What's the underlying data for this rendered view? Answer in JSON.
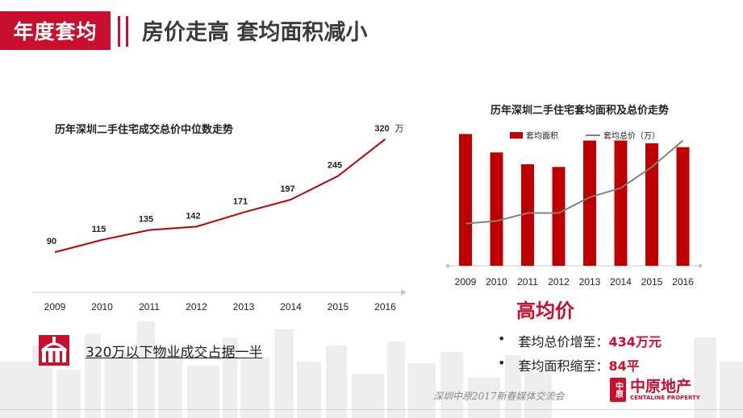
{
  "header": {
    "tag": "年度套均",
    "title": "房价走高 套均面积减小"
  },
  "chart_data": [
    {
      "type": "line",
      "title": "历年深圳二手住宅成交总价中位数走势",
      "categories": [
        "2009",
        "2010",
        "2011",
        "2012",
        "2013",
        "2014",
        "2015",
        "2016"
      ],
      "values": [
        90,
        115,
        135,
        142,
        171,
        197,
        245,
        320
      ],
      "data_labels": [
        "90",
        "115",
        "135",
        "142",
        "171",
        "197",
        "245",
        "320"
      ],
      "last_label_unit": "万",
      "color": "#c00000"
    },
    {
      "type": "bar",
      "title": "历年深圳二手住宅套均面积及总价走势",
      "categories": [
        "2009",
        "2010",
        "2011",
        "2012",
        "2013",
        "2014",
        "2015",
        "2016"
      ],
      "series": [
        {
          "name": "套均面积",
          "kind": "bar",
          "color": "#c00000",
          "values": [
            100,
            86,
            77,
            75,
            95,
            95,
            93,
            90
          ]
        },
        {
          "name": "套均总价（万）",
          "kind": "line",
          "color": "#808080",
          "values": [
            32,
            34,
            40,
            40,
            52,
            59,
            75,
            95
          ]
        }
      ],
      "ylim": [
        0,
        110
      ],
      "legend": "top"
    }
  ],
  "note": {
    "text": "320万以下物业成交占据一半"
  },
  "summary": {
    "title": "高均价",
    "items": [
      {
        "label": "套均总价增至：",
        "value": "434万元"
      },
      {
        "label": "套均面积缩至：",
        "value": "84平"
      }
    ]
  },
  "footer": {
    "text": "深圳中原2017新春媒体交流会",
    "logo_mark": "中原",
    "logo_cn": "中原地产",
    "logo_en": "CENTALINE PROPERTY"
  },
  "colors": {
    "accent": "#c8102e",
    "line": "#c00000",
    "gray_line": "#808080"
  }
}
